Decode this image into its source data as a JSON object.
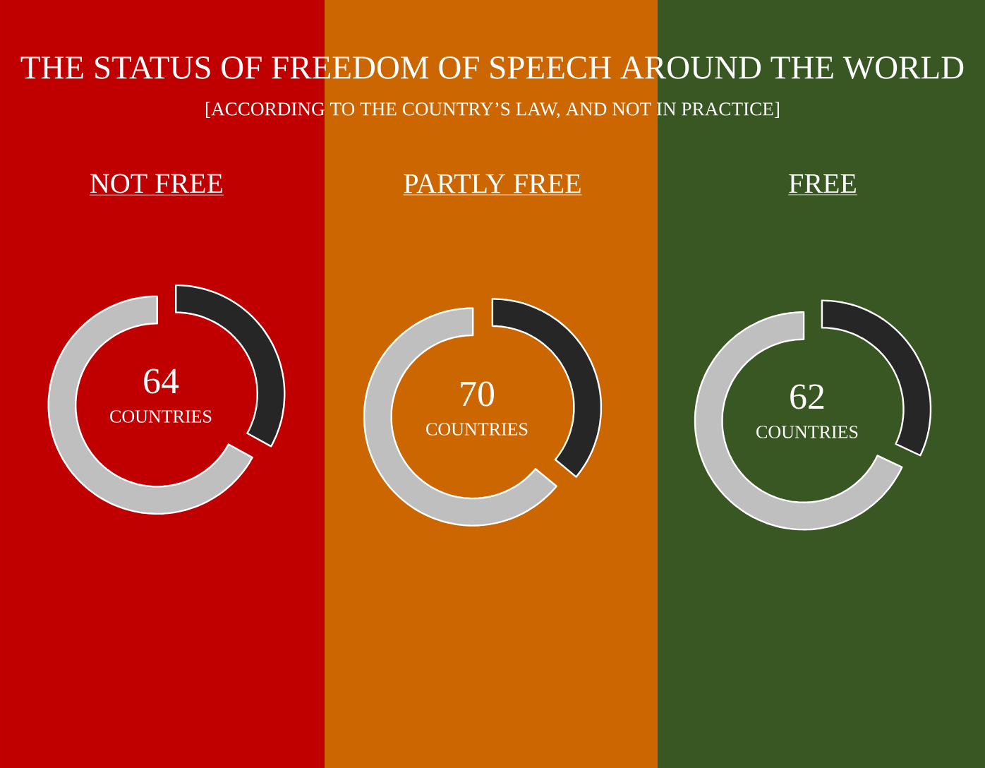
{
  "chart_data": [
    {
      "type": "other",
      "title": "THE STATUS OF FREEDOM OF SPEECH AROUND THE WORLD",
      "subtitle": "[ACCORDING TO THE COUNTRY’S LAW, AND NOT IN PRACTICE]"
    },
    {
      "type": "donut",
      "title": "NOT FREE",
      "categories": [
        null,
        null
      ],
      "values": [
        33,
        67
      ],
      "colors": [
        "#262626",
        "#bfbfbf"
      ],
      "annotations": [
        "64",
        "COUNTRIES"
      ]
    },
    {
      "type": "donut",
      "title": "PARTLY FREE",
      "categories": [
        null,
        null
      ],
      "values": [
        36,
        64
      ],
      "colors": [
        "#262626",
        "#bfbfbf"
      ],
      "annotations": [
        "70",
        "COUNTRIES"
      ]
    },
    {
      "type": "donut",
      "title": "FREE",
      "categories": [
        null,
        null
      ],
      "values": [
        32,
        68
      ],
      "colors": [
        "#262626",
        "#bfbfbf"
      ],
      "annotations": [
        "62",
        "COUNTRIES"
      ]
    }
  ]
}
